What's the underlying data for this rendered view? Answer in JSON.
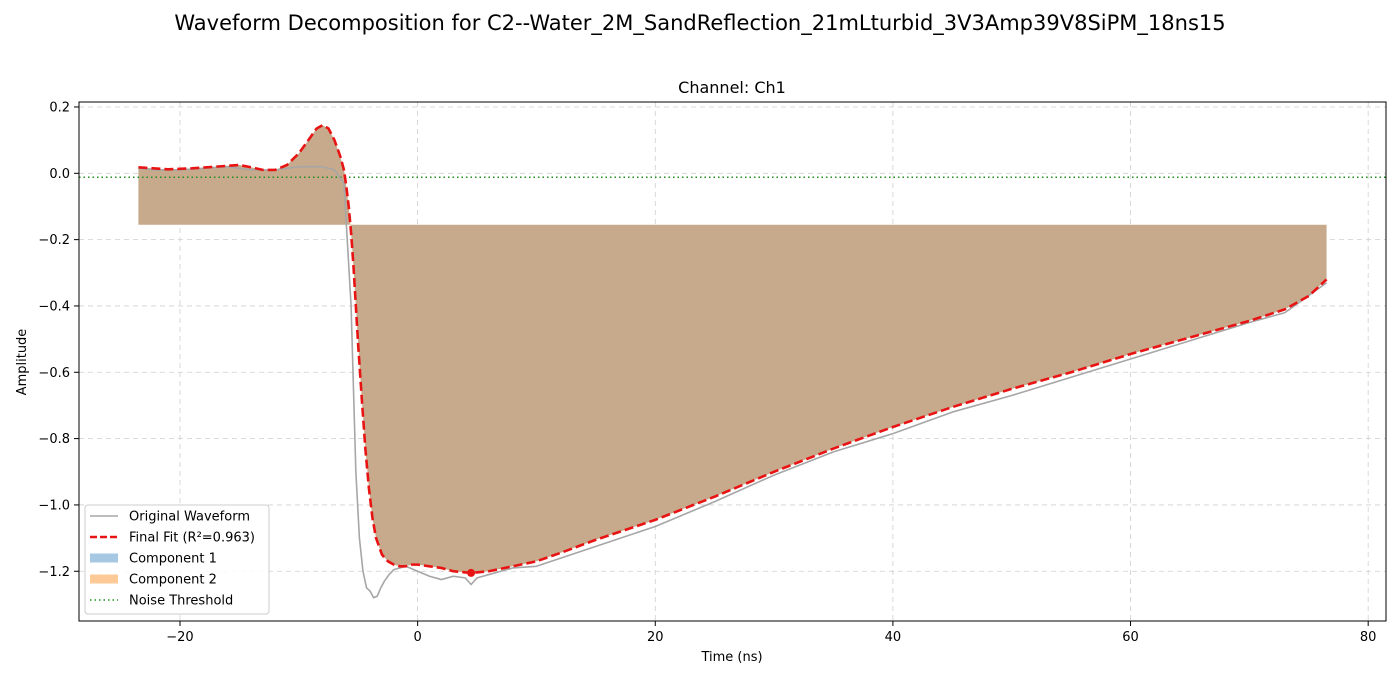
{
  "figure": {
    "suptitle": "Waveform Decomposition for C2--Water_2M_SandReflection_21mLturbid_3V3Amp39V8SiPM_18ns15"
  },
  "chart_data": {
    "type": "line",
    "title": "Channel: Ch1",
    "xlabel": "Time (ns)",
    "ylabel": "Amplitude",
    "xlim": [
      -28.5,
      81.5
    ],
    "ylim": [
      -1.35,
      0.215
    ],
    "grid": true,
    "legend_position": "lower-left",
    "x_ticks": [
      -20,
      0,
      20,
      40,
      60,
      80
    ],
    "y_ticks": [
      0.2,
      0.0,
      -0.2,
      -0.4,
      -0.6,
      -0.8,
      -1.0,
      -1.2
    ],
    "x_tick_labels": [
      "−20",
      "0",
      "20",
      "40",
      "60",
      "80"
    ],
    "y_tick_labels": [
      "0.2",
      "0.0",
      "−0.2",
      "−0.4",
      "−0.6",
      "−0.8",
      "−1.0",
      "−1.2"
    ],
    "noise_threshold": -0.012,
    "peak_marker": {
      "x": 4.5,
      "y": -1.205
    },
    "series": [
      {
        "name": "Original Waveform",
        "color": "#a6a6a6",
        "style": "solid",
        "x": [
          -23.5,
          -22,
          -20,
          -18,
          -16,
          -14,
          -12,
          -10,
          -9,
          -8,
          -7,
          -6.2,
          -5.6,
          -5.2,
          -4.9,
          -4.6,
          -4.3,
          -4.0,
          -3.7,
          -3.4,
          -3.1,
          -2.8,
          -2.4,
          -2.0,
          -1.5,
          -1.0,
          0,
          1,
          2,
          3,
          4,
          4.5,
          5,
          6,
          7,
          8,
          10,
          15,
          20,
          25,
          30,
          35,
          40,
          45,
          50,
          55,
          60,
          65,
          70,
          73,
          76.5
        ],
        "y": [
          0.015,
          0.01,
          0.01,
          0.015,
          0.02,
          0.01,
          0.01,
          0.02,
          0.02,
          0.02,
          0.01,
          -0.03,
          -0.4,
          -0.9,
          -1.1,
          -1.2,
          -1.25,
          -1.26,
          -1.28,
          -1.275,
          -1.25,
          -1.23,
          -1.21,
          -1.195,
          -1.19,
          -1.185,
          -1.2,
          -1.215,
          -1.225,
          -1.215,
          -1.22,
          -1.24,
          -1.22,
          -1.21,
          -1.2,
          -1.19,
          -1.185,
          -1.125,
          -1.065,
          -0.99,
          -0.91,
          -0.84,
          -0.785,
          -0.72,
          -0.67,
          -0.615,
          -0.56,
          -0.505,
          -0.45,
          -0.42,
          -0.33
        ]
      },
      {
        "name": "Final Fit (R²=0.963)",
        "color": "#e81414",
        "style": "dashed",
        "x": [
          -23.5,
          -21,
          -19,
          -17,
          -15,
          -14,
          -13,
          -12,
          -11,
          -10,
          -9,
          -8.5,
          -8,
          -7.5,
          -7,
          -6.5,
          -6.2,
          -6.0,
          -5.8,
          -5.6,
          -5.4,
          -5.2,
          -5.0,
          -4.7,
          -4.4,
          -4.1,
          -3.8,
          -3.5,
          -3.0,
          -2.5,
          -2.0,
          -1.5,
          -1.0,
          -0.5,
          0,
          1,
          2,
          3,
          4.5,
          6,
          8,
          10,
          12,
          15,
          20,
          25,
          30,
          35,
          40,
          45,
          50,
          55,
          60,
          65,
          70,
          73,
          75,
          76.5
        ],
        "y": [
          0.018,
          0.012,
          0.015,
          0.02,
          0.025,
          0.018,
          0.01,
          0.01,
          0.025,
          0.06,
          0.11,
          0.135,
          0.145,
          0.135,
          0.1,
          0.05,
          0.01,
          -0.04,
          -0.1,
          -0.18,
          -0.28,
          -0.4,
          -0.52,
          -0.68,
          -0.83,
          -0.95,
          -1.04,
          -1.1,
          -1.15,
          -1.17,
          -1.18,
          -1.185,
          -1.185,
          -1.18,
          -1.18,
          -1.185,
          -1.19,
          -1.2,
          -1.205,
          -1.2,
          -1.185,
          -1.17,
          -1.145,
          -1.105,
          -1.045,
          -0.975,
          -0.9,
          -0.83,
          -0.765,
          -0.705,
          -0.65,
          -0.6,
          -0.545,
          -0.495,
          -0.445,
          -0.41,
          -0.37,
          -0.32
        ]
      }
    ],
    "components": [
      {
        "name": "Component 1",
        "color": "#a6c8e3",
        "alpha": 0.35,
        "baseline": -0.155,
        "x_start": -23.5,
        "x_end": 76.5
      },
      {
        "name": "Component 2",
        "color": "#fdc997",
        "alpha": 0.35,
        "baseline": -0.155,
        "x_start": -23.5,
        "x_end": 76.5
      }
    ],
    "fill_color": "#c7aa8c",
    "legend": [
      {
        "label": "Original Waveform",
        "kind": "line",
        "color": "#a6a6a6"
      },
      {
        "label": "Final Fit (R²=0.963)",
        "kind": "dashed",
        "color": "#e81414"
      },
      {
        "label": "Component 1",
        "kind": "patch",
        "color": "#a6c8e3"
      },
      {
        "label": "Component 2",
        "kind": "patch",
        "color": "#fdc997"
      },
      {
        "label": "Noise Threshold",
        "kind": "dotted",
        "color": "#1f8f1f"
      }
    ]
  }
}
